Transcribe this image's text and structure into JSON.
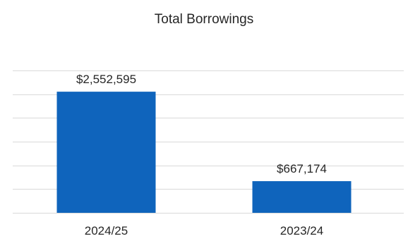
{
  "chart_data": {
    "type": "bar",
    "title": "Total Borrowings",
    "categories": [
      "2024/25",
      "2023/24"
    ],
    "values": [
      2552595,
      667174
    ],
    "data_labels": [
      "$2,552,595",
      "$667,174"
    ],
    "ylim": [
      0,
      3000000
    ],
    "grid": true,
    "legend": "none",
    "colors": {
      "bar": "#0f64bc",
      "grid": "#d9d9d9",
      "text": "#262626"
    }
  }
}
